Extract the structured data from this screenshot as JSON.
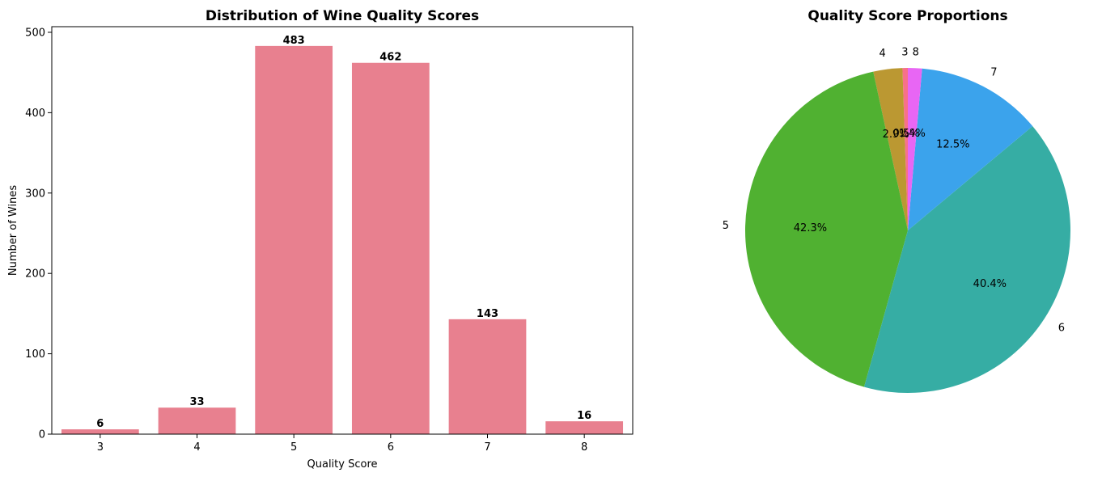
{
  "chart_data": [
    {
      "type": "bar",
      "title": "Distribution of Wine Quality Scores",
      "xlabel": "Quality Score",
      "ylabel": "Number of Wines",
      "categories": [
        "3",
        "4",
        "5",
        "6",
        "7",
        "8"
      ],
      "values": [
        6,
        33,
        483,
        462,
        143,
        16
      ],
      "data_labels": [
        "6",
        "33",
        "483",
        "462",
        "143",
        "16"
      ],
      "yticks": [
        "0",
        "100",
        "200",
        "300",
        "400",
        "500"
      ],
      "ylim": [
        0,
        507
      ],
      "color": "#e8808f",
      "grid": false
    },
    {
      "type": "pie",
      "title": "Quality Score Proportions",
      "labels": [
        "3",
        "4",
        "5",
        "6",
        "7",
        "8"
      ],
      "values": [
        6,
        33,
        483,
        462,
        143,
        16
      ],
      "percent_labels": [
        "0.5%",
        "2.9%",
        "42.3%",
        "40.4%",
        "12.5%",
        "1.4%"
      ],
      "colors": [
        "#f77189",
        "#bb9832",
        "#50b131",
        "#36ada4",
        "#3ba3ec",
        "#e866f4"
      ],
      "start_angle_deg": 90
    }
  ]
}
